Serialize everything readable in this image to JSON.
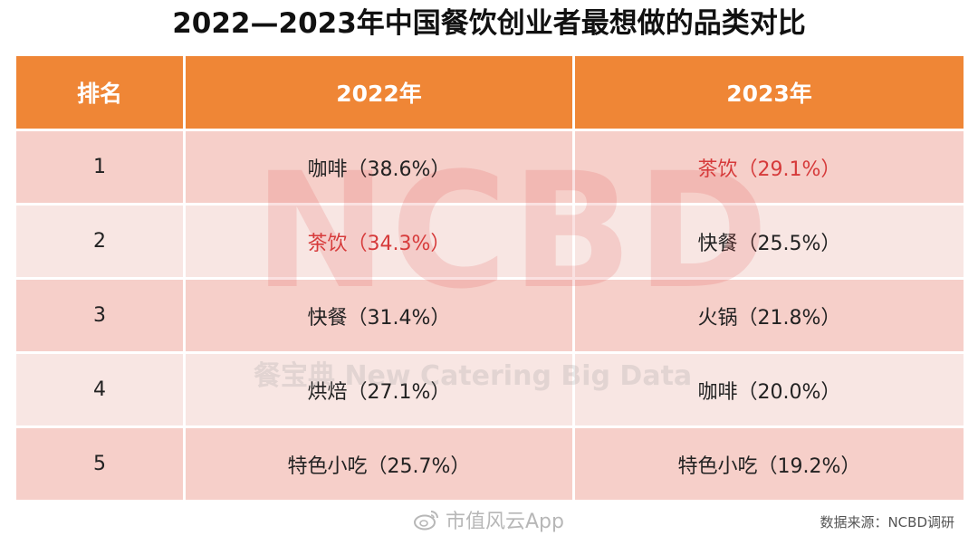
{
  "title": "2022—2023年中国餐饮创业者最想做的品类对比",
  "table": {
    "headers": [
      "排名",
      "2022年",
      "2023年"
    ],
    "rows": [
      {
        "rank": "1",
        "y2022": "咖啡（38.6%）",
        "y2023": "茶饮（29.1%）"
      },
      {
        "rank": "2",
        "y2022": "茶饮（34.3%）",
        "y2023": "快餐（25.5%）"
      },
      {
        "rank": "3",
        "y2022": "快餐（31.4%）",
        "y2023": "火锅（21.8%）"
      },
      {
        "rank": "4",
        "y2022": "烘焙（27.1%）",
        "y2023": "咖啡（20.0%）"
      },
      {
        "rank": "5",
        "y2022": "特色小吃（25.7%）",
        "y2023": "特色小吃（19.2%）"
      }
    ]
  },
  "watermark": {
    "logo_text": "NCBD",
    "sub_text": "餐宝典 New Catering Big Data"
  },
  "weibo_mark": "市值风云App",
  "source": "数据来源：NCBD调研",
  "colors": {
    "header_bg": "#ef8636",
    "row_dark": "#f6cfc9",
    "row_light": "#f8e6e3",
    "highlight_red": "#d63a3a"
  }
}
